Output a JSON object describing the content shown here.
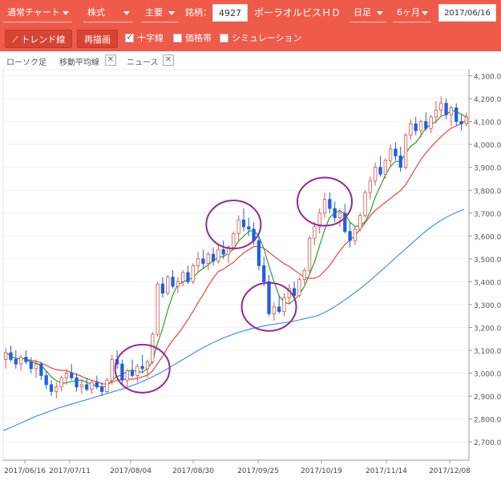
{
  "toolbar": {
    "chart_type": "通常チャート",
    "market": "株式",
    "exchange": "主要",
    "code_label": "銘柄：",
    "code": "4927",
    "company": "ポーラオルビスＨＤ",
    "interval": "日足",
    "range": "6ヶ月",
    "date": "2017/06/16",
    "trend_button": "トレンド線",
    "redraw_button": "再描画",
    "cross_label": "十字線",
    "price_band_label": "価格帯",
    "simulation_label": "シミュレーション"
  },
  "tabs": {
    "candle": "ローソク足",
    "ma": "移動平均線",
    "news": "ニュース"
  },
  "colors": {
    "toolbar": "#ee5b4a",
    "up_candle": "#ffffff",
    "up_border": "#d9534f",
    "down_candle": "#1f5fe0",
    "ma_short": "#2ca02c",
    "ma_mid": "#e8453c",
    "ma_long": "#4a90e2",
    "highlight_circle": "#8e2a97"
  },
  "chart_data": {
    "type": "candlestick",
    "x_tick_labels": [
      "2017/06/16",
      "2017/07/11",
      "2017/08/04",
      "2017/08/30",
      "2017/09/25",
      "2017/10/19",
      "2017/11/14",
      "2017/12/08"
    ],
    "y_tick_labels": [
      "2,700.0",
      "2,800.0",
      "2,900.0",
      "3,000.0",
      "3,100.0",
      "3,200.0",
      "3,300.0",
      "3,400.0",
      "3,500.0",
      "3,600.0",
      "3,700.0",
      "3,800.0",
      "3,900.0",
      "4,000.0",
      "4,100.0",
      "4,200.0",
      "4,300.0"
    ],
    "ylim": [
      2620,
      4330
    ],
    "candles": [
      [
        3060,
        3110,
        3020,
        3090
      ],
      [
        3090,
        3120,
        3050,
        3060
      ],
      [
        3060,
        3100,
        3020,
        3040
      ],
      [
        3040,
        3080,
        3010,
        3070
      ],
      [
        3070,
        3100,
        3040,
        3050
      ],
      [
        3050,
        3070,
        3000,
        3020
      ],
      [
        3020,
        3060,
        2980,
        3040
      ],
      [
        3040,
        3050,
        2970,
        2990
      ],
      [
        2990,
        3010,
        2930,
        2950
      ],
      [
        2950,
        2970,
        2900,
        2920
      ],
      [
        2920,
        2960,
        2890,
        2940
      ],
      [
        2940,
        2990,
        2920,
        2980
      ],
      [
        2980,
        3020,
        2950,
        3000
      ],
      [
        3000,
        3040,
        2970,
        2980
      ],
      [
        2980,
        3000,
        2920,
        2940
      ],
      [
        2940,
        2970,
        2910,
        2950
      ],
      [
        2950,
        2980,
        2920,
        2930
      ],
      [
        2930,
        2970,
        2910,
        2960
      ],
      [
        2960,
        2990,
        2930,
        2940
      ],
      [
        2940,
        2960,
        2900,
        2920
      ],
      [
        2920,
        2980,
        2910,
        2970
      ],
      [
        2970,
        3080,
        2950,
        3060
      ],
      [
        3060,
        3100,
        3020,
        3040
      ],
      [
        3040,
        3060,
        2950,
        2970
      ],
      [
        2970,
        3020,
        2940,
        3010
      ],
      [
        3010,
        3060,
        2980,
        2990
      ],
      [
        2990,
        3040,
        2960,
        3030
      ],
      [
        3030,
        3080,
        3000,
        3020
      ],
      [
        3020,
        3060,
        2980,
        3050
      ],
      [
        3050,
        3180,
        3040,
        3170
      ],
      [
        3170,
        3400,
        3160,
        3390
      ],
      [
        3390,
        3420,
        3330,
        3350
      ],
      [
        3350,
        3430,
        3340,
        3420
      ],
      [
        3420,
        3450,
        3370,
        3380
      ],
      [
        3380,
        3420,
        3350,
        3400
      ],
      [
        3400,
        3450,
        3380,
        3440
      ],
      [
        3440,
        3470,
        3390,
        3400
      ],
      [
        3400,
        3480,
        3390,
        3470
      ],
      [
        3470,
        3530,
        3440,
        3500
      ],
      [
        3500,
        3540,
        3460,
        3480
      ],
      [
        3480,
        3530,
        3450,
        3520
      ],
      [
        3520,
        3550,
        3470,
        3490
      ],
      [
        3490,
        3560,
        3480,
        3540
      ],
      [
        3540,
        3580,
        3500,
        3520
      ],
      [
        3520,
        3560,
        3480,
        3550
      ],
      [
        3550,
        3620,
        3540,
        3610
      ],
      [
        3610,
        3690,
        3580,
        3670
      ],
      [
        3670,
        3720,
        3620,
        3640
      ],
      [
        3640,
        3680,
        3600,
        3630
      ],
      [
        3630,
        3660,
        3560,
        3580
      ],
      [
        3580,
        3600,
        3450,
        3470
      ],
      [
        3470,
        3510,
        3380,
        3400
      ],
      [
        3400,
        3430,
        3250,
        3260
      ],
      [
        3260,
        3310,
        3230,
        3290
      ],
      [
        3290,
        3340,
        3260,
        3270
      ],
      [
        3270,
        3350,
        3250,
        3330
      ],
      [
        3330,
        3390,
        3300,
        3370
      ],
      [
        3370,
        3400,
        3320,
        3340
      ],
      [
        3340,
        3420,
        3330,
        3410
      ],
      [
        3410,
        3460,
        3390,
        3450
      ],
      [
        3450,
        3600,
        3440,
        3590
      ],
      [
        3590,
        3660,
        3560,
        3640
      ],
      [
        3640,
        3720,
        3610,
        3700
      ],
      [
        3700,
        3790,
        3680,
        3760
      ],
      [
        3760,
        3790,
        3700,
        3720
      ],
      [
        3720,
        3750,
        3660,
        3680
      ],
      [
        3680,
        3720,
        3640,
        3700
      ],
      [
        3700,
        3740,
        3610,
        3620
      ],
      [
        3620,
        3660,
        3550,
        3580
      ],
      [
        3580,
        3640,
        3560,
        3630
      ],
      [
        3630,
        3700,
        3620,
        3690
      ],
      [
        3690,
        3800,
        3680,
        3790
      ],
      [
        3790,
        3860,
        3760,
        3840
      ],
      [
        3840,
        3920,
        3820,
        3900
      ],
      [
        3900,
        3950,
        3860,
        3870
      ],
      [
        3870,
        3940,
        3850,
        3930
      ],
      [
        3930,
        4000,
        3900,
        3980
      ],
      [
        3980,
        4010,
        3930,
        3950
      ],
      [
        3950,
        3990,
        3880,
        3900
      ],
      [
        3900,
        4050,
        3890,
        4040
      ],
      [
        4040,
        4110,
        4020,
        4090
      ],
      [
        4090,
        4120,
        4040,
        4060
      ],
      [
        4060,
        4110,
        4030,
        4100
      ],
      [
        4100,
        4140,
        4060,
        4070
      ],
      [
        4070,
        4130,
        4050,
        4120
      ],
      [
        4120,
        4190,
        4090,
        4150
      ],
      [
        4150,
        4210,
        4120,
        4180
      ],
      [
        4180,
        4200,
        4110,
        4130
      ],
      [
        4130,
        4170,
        4080,
        4160
      ],
      [
        4160,
        4180,
        4080,
        4100
      ],
      [
        4100,
        4130,
        4060,
        4090
      ],
      [
        4090,
        4140,
        4080,
        4120
      ]
    ],
    "series": [
      {
        "color_key": "ma_short"
      },
      {
        "color_key": "ma_mid"
      },
      {
        "color_key": "ma_long",
        "values": [
          2750,
          2760,
          2772,
          2784,
          2796,
          2808,
          2818,
          2828,
          2838,
          2848,
          2856,
          2864,
          2872,
          2880,
          2888,
          2896,
          2904,
          2912,
          2920,
          2928,
          2936,
          2946,
          2956,
          2968,
          2980,
          2994,
          3008,
          3024,
          3040,
          3056,
          3072,
          3088,
          3104,
          3118,
          3132,
          3144,
          3156,
          3166,
          3176,
          3184,
          3192,
          3198,
          3204,
          3210,
          3214,
          3218,
          3222,
          3226,
          3232,
          3238,
          3244,
          3250,
          3262,
          3276,
          3292,
          3310,
          3328,
          3348,
          3368,
          3390,
          3412,
          3436,
          3460,
          3484,
          3508,
          3532,
          3556,
          3580,
          3604,
          3626,
          3646,
          3664,
          3680,
          3694,
          3706,
          3716
        ]
      }
    ],
    "circled_regions": [
      {
        "x_index": 27,
        "y": 3020
      },
      {
        "x_index": 45,
        "y": 3650
      },
      {
        "x_index": 52,
        "y": 3290
      },
      {
        "x_index": 63,
        "y": 3750
      }
    ]
  }
}
